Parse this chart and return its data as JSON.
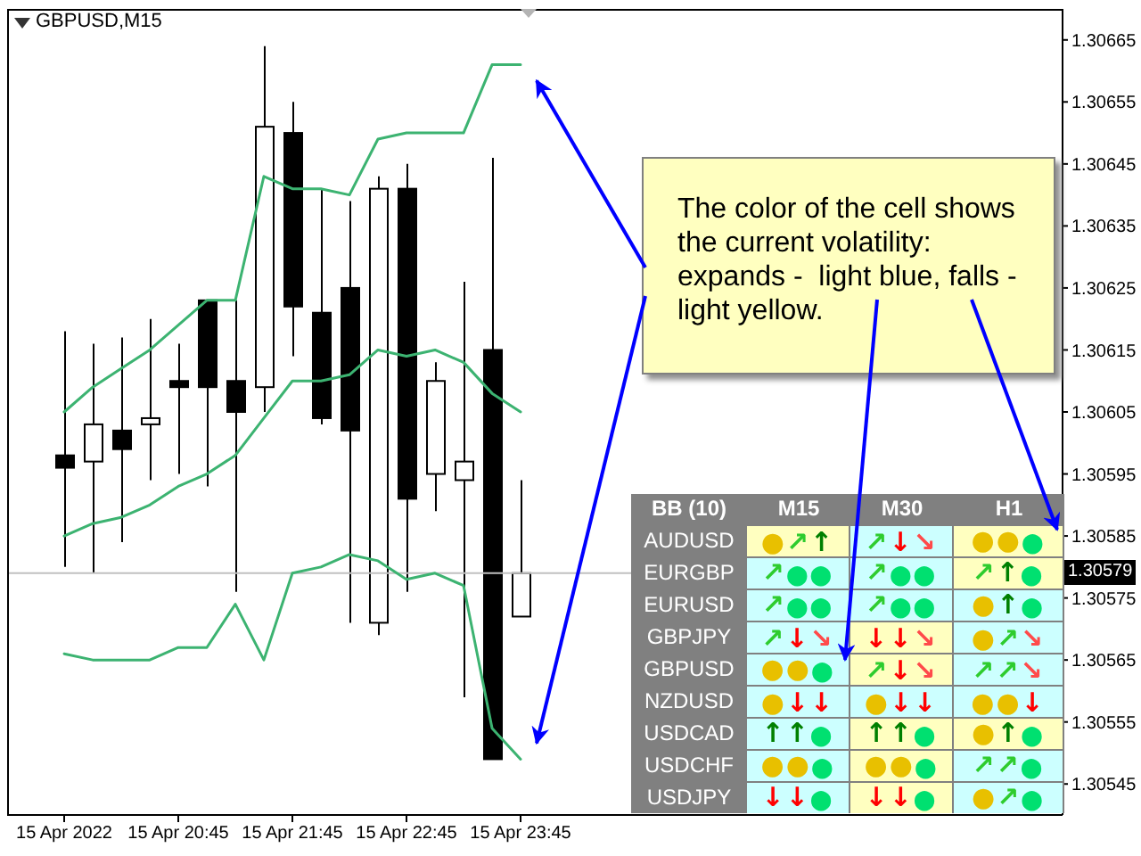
{
  "chart_data": [
    {
      "type": "candlestick",
      "title": "GBPUSD,M15",
      "x": [
        "2022-04-15T19:45",
        "2022-04-15T20:00",
        "2022-04-15T20:15",
        "2022-04-15T20:30",
        "2022-04-15T20:45",
        "2022-04-15T21:00",
        "2022-04-15T21:15",
        "2022-04-15T21:30",
        "2022-04-15T21:45",
        "2022-04-15T22:00",
        "2022-04-15T22:15",
        "2022-04-15T22:30",
        "2022-04-15T22:45",
        "2022-04-15T23:00",
        "2022-04-15T23:15",
        "2022-04-15T23:30",
        "2022-04-15T23:45"
      ],
      "ohlc": [
        [
          1.30598,
          1.30618,
          1.3058,
          1.30596
        ],
        [
          1.30597,
          1.30616,
          1.30579,
          1.30603
        ],
        [
          1.30602,
          1.30617,
          1.30584,
          1.30599
        ],
        [
          1.30603,
          1.3062,
          1.30594,
          1.30604
        ],
        [
          1.3061,
          1.30616,
          1.30595,
          1.30609
        ],
        [
          1.30623,
          1.30623,
          1.30593,
          1.30609
        ],
        [
          1.3061,
          1.30623,
          1.30576,
          1.30605
        ],
        [
          1.30609,
          1.30664,
          1.30605,
          1.30651
        ],
        [
          1.3065,
          1.30655,
          1.30614,
          1.30622
        ],
        [
          1.30621,
          1.30641,
          1.30603,
          1.30604
        ],
        [
          1.30625,
          1.30639,
          1.30571,
          1.30602
        ],
        [
          1.30571,
          1.30643,
          1.30569,
          1.30641
        ],
        [
          1.30641,
          1.30645,
          1.30576,
          1.30591
        ],
        [
          1.30595,
          1.30613,
          1.30589,
          1.3061
        ],
        [
          1.30594,
          1.30626,
          1.30559,
          1.30597
        ],
        [
          1.30615,
          1.30646,
          1.30549,
          1.30549
        ],
        [
          1.30572,
          1.30594,
          1.30572,
          1.30579
        ]
      ],
      "series": [
        {
          "type": "line",
          "color": "#3cb371",
          "values": [
            1.30605,
            1.30609,
            1.30612,
            1.30615,
            1.30619,
            1.30623,
            1.30623,
            1.30643,
            1.30641,
            1.30641,
            1.3064,
            1.30649,
            1.3065,
            1.3065,
            1.3065,
            1.30661,
            1.30661
          ]
        },
        {
          "type": "line",
          "color": "#3cb371",
          "values": [
            1.30585,
            1.30587,
            1.30588,
            1.3059,
            1.30593,
            1.30595,
            1.30598,
            1.30604,
            1.3061,
            1.3061,
            1.30611,
            1.30615,
            1.30614,
            1.30615,
            1.30613,
            1.30608,
            1.30605
          ]
        },
        {
          "type": "line",
          "color": "#3cb371",
          "values": [
            1.30566,
            1.30565,
            1.30565,
            1.30565,
            1.30567,
            1.30567,
            1.30574,
            1.30565,
            1.30579,
            1.3058,
            1.30582,
            1.30581,
            1.30578,
            1.30579,
            1.30577,
            1.30554,
            1.30549
          ]
        }
      ],
      "xlim": [
        "2022-04-15T19:15",
        "2022-04-16T04:30"
      ],
      "xticks": [
        {
          "value": "2022-04-15T19:45",
          "label": "15 Apr 2022"
        },
        {
          "value": "2022-04-15T20:45",
          "label": "15 Apr 20:45"
        },
        {
          "value": "2022-04-15T21:45",
          "label": "15 Apr 21:45"
        },
        {
          "value": "2022-04-15T22:45",
          "label": "15 Apr 22:45"
        },
        {
          "value": "2022-04-15T23:45",
          "label": "15 Apr 23:45"
        }
      ],
      "ylim": [
        1.3054,
        1.3067
      ],
      "yticks": [
        1.30545,
        1.30555,
        1.30565,
        1.30575,
        1.30585,
        1.30595,
        1.30605,
        1.30615,
        1.30625,
        1.30635,
        1.30645,
        1.30655,
        1.30665
      ],
      "ref_lines": [
        {
          "axis": "y",
          "value": 1.30579,
          "label": "1.30579",
          "color": "#c0c0c0"
        }
      ],
      "annotations": [
        "The color of the cell shows the current volatility: expands -  light blue, falls - light yellow."
      ]
    },
    {
      "type": "other",
      "title": "BB (10)",
      "categories": [
        "M15",
        "M30",
        "H1"
      ],
      "y_categories": [
        "AUDUSD",
        "EURGBP",
        "EURUSD",
        "GBPJPY",
        "GBPUSD",
        "NZDUSD",
        "USDCAD",
        "USDCHF",
        "USDJPY"
      ],
      "cell_labels": [
        [
          "●↗↑",
          "↗↓↘",
          "●●⬤"
        ],
        [
          "↗⬤⬤",
          "↗⬤⬤",
          "↗↑⬤"
        ],
        [
          "↗⬤⬤",
          "↗⬤⬤",
          "●↑⬤"
        ],
        [
          "↗↓↘",
          "↓↓↘",
          "●↗↘"
        ],
        [
          "●●⬤",
          "↗↓↘",
          "↗↗↘"
        ],
        [
          "●↓↓",
          "●↓↓",
          "●●↓"
        ],
        [
          "↑↑⬤",
          "↑↑⬤",
          "●↑⬤"
        ],
        [
          "●●⬤",
          "●●⬤",
          "↗↗⬤"
        ],
        [
          "↓↓⬤",
          "↓↓⬤",
          "●↗⬤"
        ]
      ],
      "colors": [
        [
          "#ffffc0",
          "#ccffff",
          "#ffffc0"
        ],
        [
          "#ccffff",
          "#ccffff",
          "#ffffc0"
        ],
        [
          "#ccffff",
          "#ccffff",
          "#ccffff"
        ],
        [
          "#ccffff",
          "#ffffc0",
          "#ccffff"
        ],
        [
          "#ccffff",
          "#ffffc0",
          "#ccffff"
        ],
        [
          "#ccffff",
          "#ccffff",
          "#ccffff"
        ],
        [
          "#ccffff",
          "#ffffc0",
          "#ffffc0"
        ],
        [
          "#ccffff",
          "#ffffc0",
          "#ccffff"
        ],
        [
          "#ccffff",
          "#ffffc0",
          "#ccffff"
        ]
      ]
    }
  ]
}
